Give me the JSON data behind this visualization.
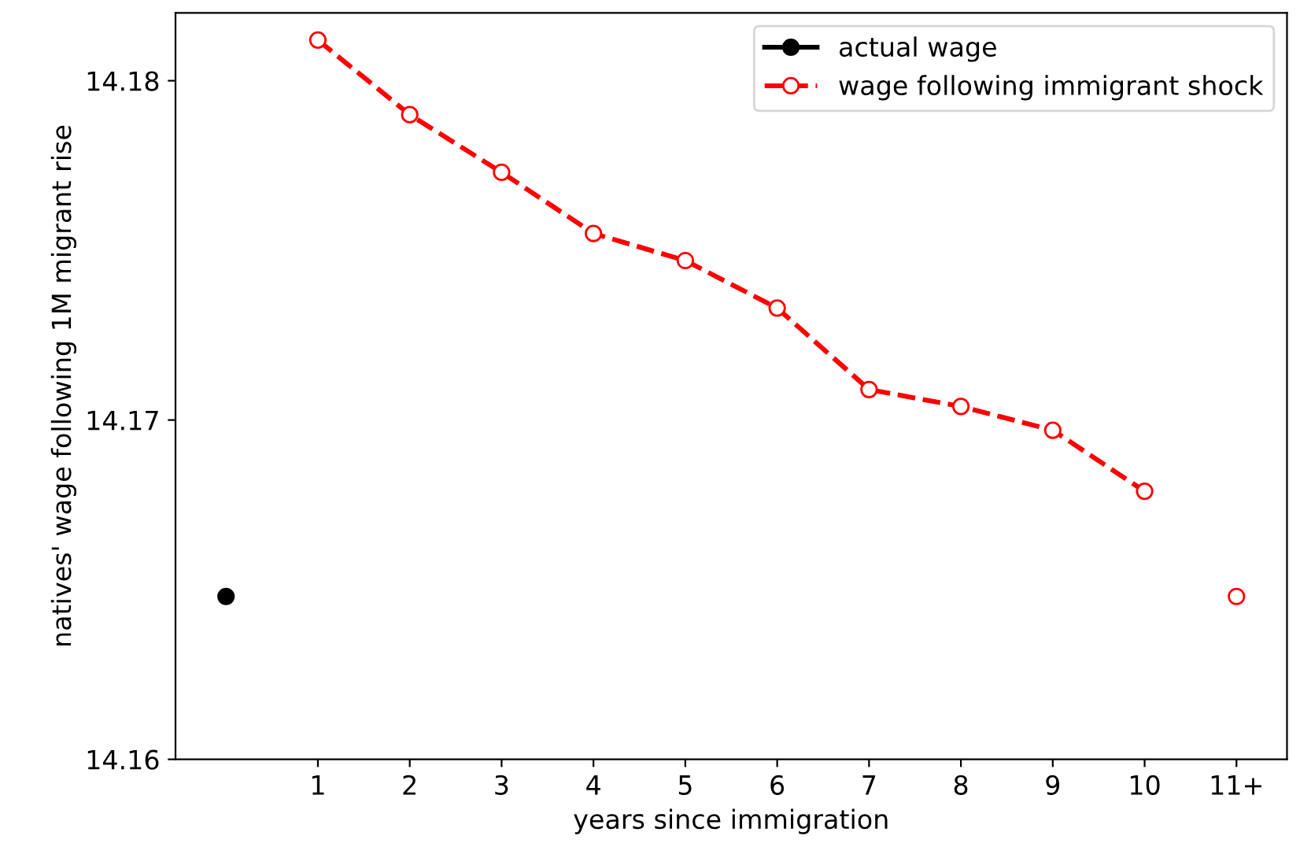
{
  "chart_data": {
    "type": "line",
    "xlabel": "years since immigration",
    "ylabel": "natives' wage following 1M migrant rise",
    "categories": [
      null,
      "1",
      "2",
      "3",
      "4",
      "5",
      "6",
      "7",
      "8",
      "9",
      "10",
      "11+"
    ],
    "series": [
      {
        "name": "actual wage",
        "color": "#000000",
        "line_style": "solid",
        "marker": "circle",
        "values": [
          14.1648,
          null,
          null,
          null,
          null,
          null,
          null,
          null,
          null,
          null,
          null,
          null
        ]
      },
      {
        "name": "wage following immigrant shock",
        "color": "#ff0000",
        "line_style": "dashed",
        "marker": "circle",
        "values": [
          null,
          14.1812,
          14.179,
          14.1773,
          14.1755,
          14.1747,
          14.1733,
          14.1709,
          14.1704,
          14.1697,
          14.1679,
          null
        ]
      },
      {
        "color": "#ff0000",
        "line_style": "none",
        "marker": "circle",
        "values": [
          null,
          null,
          null,
          null,
          null,
          null,
          null,
          null,
          null,
          null,
          null,
          14.1648
        ]
      }
    ],
    "ylim": [
      14.16,
      14.182
    ],
    "yticks": [
      14.16,
      14.17,
      14.18
    ],
    "legend": "top right",
    "grid": false
  }
}
